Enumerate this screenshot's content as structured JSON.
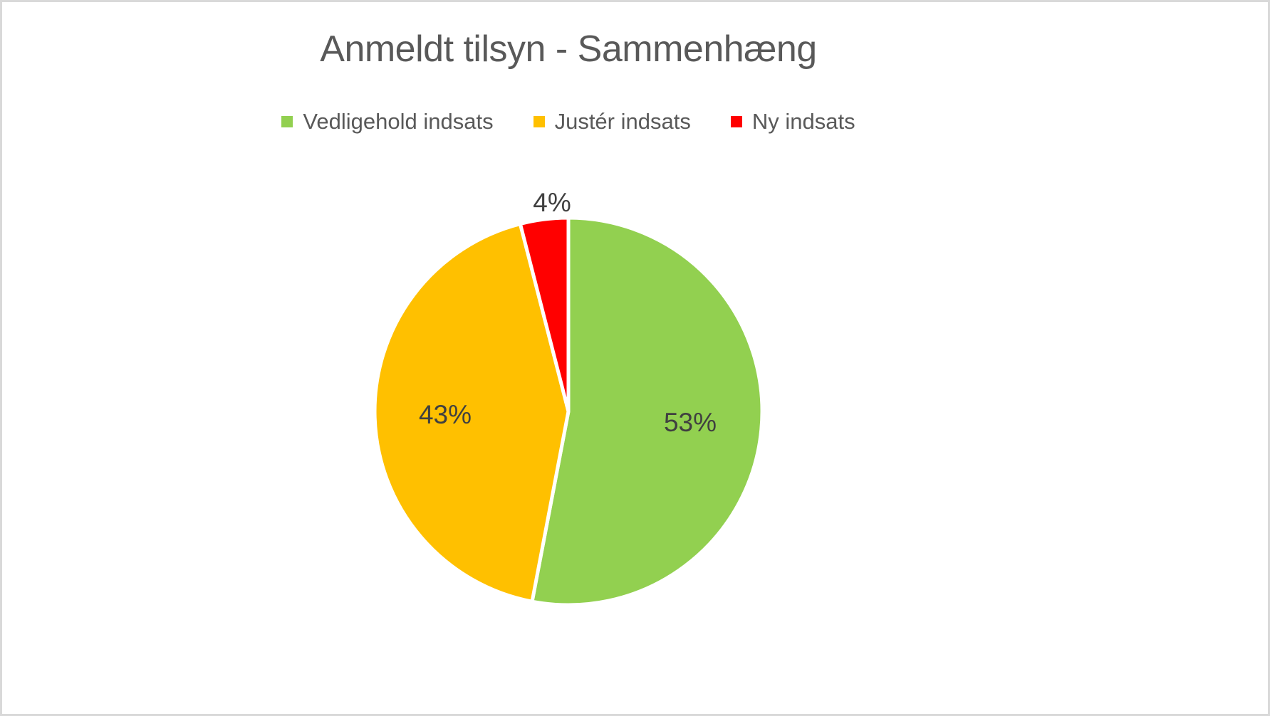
{
  "page": {
    "background": "#FFFFFF",
    "border_color": "#D9D9D9"
  },
  "chart": {
    "title": "Anmeldt tilsyn - Sammenhæng",
    "title_color": "#595959",
    "legend_text_color": "#595959",
    "data_label_color": "#404040"
  },
  "chart_data": {
    "type": "pie",
    "title": "Anmeldt tilsyn - Sammenhæng",
    "legend_position": "top",
    "start_angle_deg": 0,
    "direction": "clockwise",
    "slice_border_color": "#FFFFFF",
    "categories": [
      "Vedligehold indsats",
      "Justér indsats",
      "Ny indsats"
    ],
    "series": [
      {
        "name": "Vedligehold indsats",
        "value": 53,
        "label": "53%",
        "color": "#92D050"
      },
      {
        "name": "Justér indsats",
        "value": 43,
        "label": "43%",
        "color": "#FFC000"
      },
      {
        "name": "Ny indsats",
        "value": 4,
        "label": "4%",
        "color": "#FF0000"
      }
    ]
  }
}
